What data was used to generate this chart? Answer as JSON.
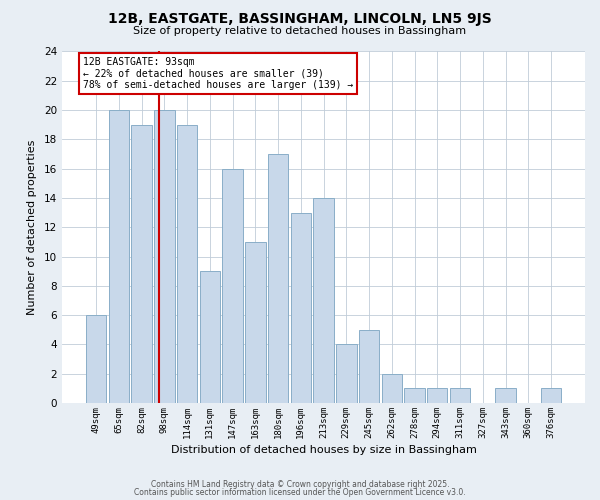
{
  "title": "12B, EASTGATE, BASSINGHAM, LINCOLN, LN5 9JS",
  "subtitle": "Size of property relative to detached houses in Bassingham",
  "xlabel": "Distribution of detached houses by size in Bassingham",
  "ylabel": "Number of detached properties",
  "categories": [
    "49sqm",
    "65sqm",
    "82sqm",
    "98sqm",
    "114sqm",
    "131sqm",
    "147sqm",
    "163sqm",
    "180sqm",
    "196sqm",
    "213sqm",
    "229sqm",
    "245sqm",
    "262sqm",
    "278sqm",
    "294sqm",
    "311sqm",
    "327sqm",
    "343sqm",
    "360sqm",
    "376sqm"
  ],
  "values": [
    6,
    20,
    19,
    20,
    19,
    9,
    16,
    11,
    17,
    13,
    14,
    4,
    5,
    2,
    1,
    1,
    1,
    0,
    1,
    0,
    1
  ],
  "bar_color": "#c8d8ea",
  "bar_edge_color": "#8aaec8",
  "vline_color": "#cc0000",
  "annotation_title": "12B EASTGATE: 93sqm",
  "annotation_line1": "← 22% of detached houses are smaller (39)",
  "annotation_line2": "78% of semi-detached houses are larger (139) →",
  "annotation_box_color": "#ffffff",
  "annotation_box_edge": "#cc0000",
  "ylim": [
    0,
    24
  ],
  "yticks": [
    0,
    2,
    4,
    6,
    8,
    10,
    12,
    14,
    16,
    18,
    20,
    22,
    24
  ],
  "footer1": "Contains HM Land Registry data © Crown copyright and database right 2025.",
  "footer2": "Contains public sector information licensed under the Open Government Licence v3.0.",
  "bg_color": "#e8eef4",
  "plot_bg_color": "#ffffff",
  "grid_color": "#c0ccd8"
}
